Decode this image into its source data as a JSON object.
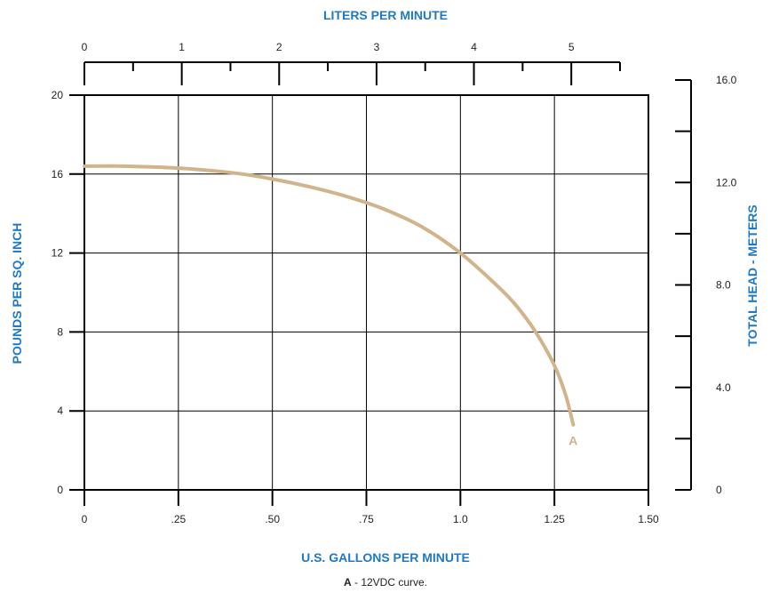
{
  "chart_data": {
    "type": "line",
    "xlabel": "U.S. GALLONS PER MINUTE",
    "ylabel": "POUNDS PER SQ. INCH",
    "x2label": "LITERS PER MINUTE",
    "y2label": "TOTAL HEAD - METERS",
    "xlim": [
      0,
      1.5
    ],
    "ylim": [
      0,
      20
    ],
    "x2lim": [
      0,
      5.5
    ],
    "y2lim": [
      0,
      16
    ],
    "x_ticks": [
      0,
      0.25,
      0.5,
      0.75,
      1.0,
      1.25,
      1.5
    ],
    "x_tick_labels": [
      "0",
      ".25",
      ".50",
      ".75",
      "1.0",
      "1.25",
      "1.50"
    ],
    "y_ticks": [
      0,
      4,
      8,
      12,
      16,
      20
    ],
    "y_tick_labels": [
      "0",
      "4",
      "8",
      "12",
      "16",
      "20"
    ],
    "x2_ticks": [
      0,
      1,
      2,
      3,
      4,
      5
    ],
    "x2_tick_labels": [
      "0",
      "1",
      "2",
      "3",
      "4",
      "5"
    ],
    "y2_ticks": [
      0,
      4,
      8,
      12,
      16
    ],
    "y2_tick_labels": [
      "0",
      "4.0",
      "8.0",
      "12.0",
      "16.0"
    ],
    "grid": true,
    "series": [
      {
        "name": "A",
        "color": "#d2b48c",
        "x": [
          0,
          0.1,
          0.25,
          0.4,
          0.5,
          0.6,
          0.7,
          0.8,
          0.9,
          1.0,
          1.1,
          1.15,
          1.2,
          1.25,
          1.28,
          1.3
        ],
        "y": [
          16.4,
          16.4,
          16.3,
          16.05,
          15.75,
          15.35,
          14.85,
          14.2,
          13.3,
          12.0,
          10.3,
          9.3,
          8.0,
          6.3,
          4.8,
          3.3
        ]
      }
    ],
    "legend_text": "- 12VDC curve."
  }
}
